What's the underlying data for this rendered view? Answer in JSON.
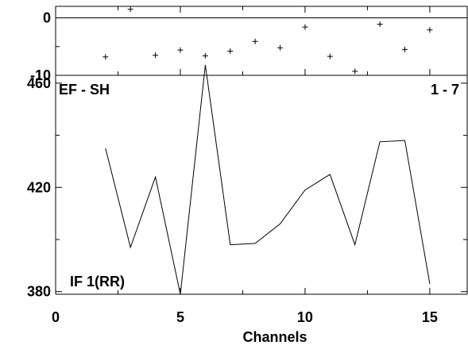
{
  "chart_data": [
    {
      "type": "scatter",
      "title_left": "EF - SH",
      "title_right": "1 - 7",
      "xlabel": "Channels",
      "ylabel": "",
      "xlim": [
        0,
        16.5
      ],
      "ylim": [
        -10,
        2
      ],
      "grid": false,
      "ytick_labels": [
        "0",
        "-10"
      ],
      "x": [
        2,
        3,
        4,
        5,
        6,
        7,
        8,
        9,
        10,
        11,
        12,
        13,
        14,
        15
      ],
      "y": [
        -6.8,
        1.5,
        -6.5,
        -5.6,
        -6.6,
        -5.8,
        -4.1,
        -5.2,
        -1.6,
        -6.7,
        -9.3,
        -1.1,
        -5.5,
        -2.1
      ]
    },
    {
      "type": "line",
      "label": "IF 1(RR)",
      "xlabel": "Channels",
      "ylabel": "",
      "xlim": [
        0,
        16.5
      ],
      "ylim": [
        379,
        463
      ],
      "grid": false,
      "xtick_labels": [
        "0",
        "5",
        "10",
        "15"
      ],
      "ytick_labels": [
        "460",
        "420",
        "380"
      ],
      "x": [
        2,
        3,
        4,
        5,
        6,
        7,
        8,
        9,
        10,
        11,
        12,
        13,
        14,
        15
      ],
      "y": [
        435,
        397,
        424,
        379,
        467,
        398,
        398.5,
        406,
        419,
        425,
        398,
        437.5,
        438,
        383
      ]
    }
  ]
}
